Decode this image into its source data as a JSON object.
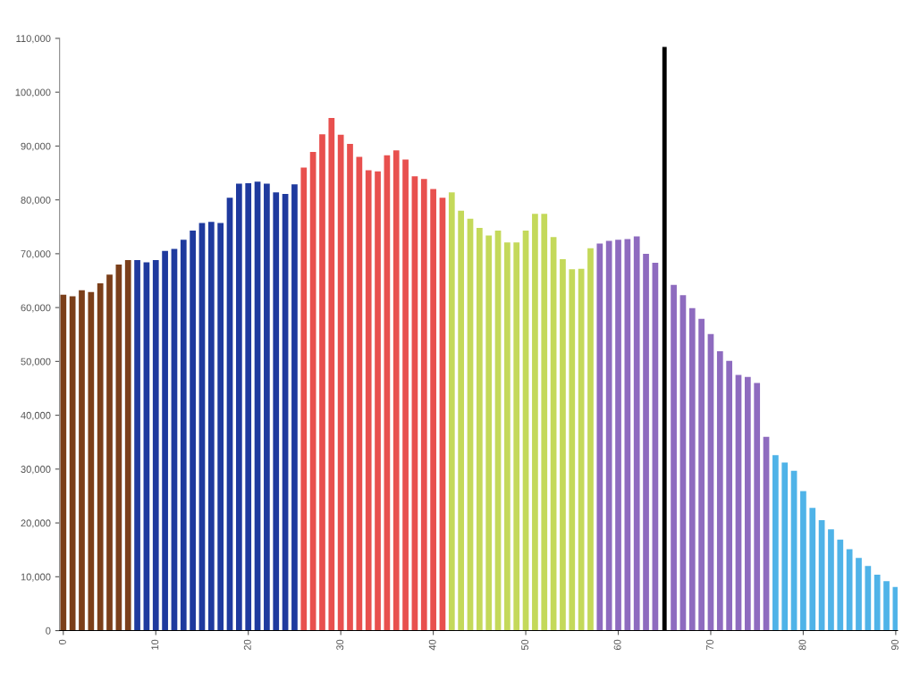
{
  "chart_data": {
    "type": "bar",
    "x": [
      0,
      1,
      2,
      3,
      4,
      5,
      6,
      7,
      8,
      9,
      10,
      11,
      12,
      13,
      14,
      15,
      16,
      17,
      18,
      19,
      20,
      21,
      22,
      23,
      24,
      25,
      26,
      27,
      28,
      29,
      30,
      31,
      32,
      33,
      34,
      35,
      36,
      37,
      38,
      39,
      40,
      41,
      42,
      43,
      44,
      45,
      46,
      47,
      48,
      49,
      50,
      51,
      52,
      53,
      54,
      55,
      56,
      57,
      58,
      59,
      60,
      61,
      62,
      63,
      64,
      65,
      66,
      67,
      68,
      69,
      70,
      71,
      72,
      73,
      74,
      75,
      76,
      77,
      78,
      79,
      80,
      81,
      82,
      83,
      84,
      85,
      86,
      87,
      88,
      89,
      90
    ],
    "values": [
      62400,
      62100,
      63200,
      62900,
      64500,
      66100,
      68000,
      68800,
      68800,
      68400,
      68800,
      70500,
      70900,
      72600,
      74300,
      75700,
      75900,
      75700,
      80400,
      83000,
      83100,
      83400,
      83000,
      81400,
      81100,
      82900,
      86000,
      88900,
      92200,
      95200,
      92100,
      90400,
      88000,
      85500,
      85300,
      88300,
      89200,
      87500,
      84400,
      83900,
      82000,
      80400,
      81400,
      78000,
      76500,
      74800,
      73400,
      74300,
      72100,
      72100,
      74300,
      77400,
      77400,
      73100,
      69000,
      67100,
      67200,
      71000,
      71900,
      72400,
      72600,
      72700,
      73200,
      70000,
      68300,
      null,
      64200,
      62300,
      59900,
      57900,
      55100,
      51900,
      50100,
      47500,
      47100,
      46000,
      36000,
      32600,
      31200,
      29700,
      25900,
      22800,
      20500,
      18800,
      16900,
      15100,
      13500,
      12000,
      10400,
      9200,
      8100
    ],
    "colors": [
      "#7b3f1a",
      "#7b3f1a",
      "#7b3f1a",
      "#7b3f1a",
      "#7b3f1a",
      "#7b3f1a",
      "#7b3f1a",
      "#7b3f1a",
      "#1f3a9e",
      "#1f3a9e",
      "#1f3a9e",
      "#1f3a9e",
      "#1f3a9e",
      "#1f3a9e",
      "#1f3a9e",
      "#1f3a9e",
      "#1f3a9e",
      "#1f3a9e",
      "#1f3a9e",
      "#1f3a9e",
      "#1f3a9e",
      "#1f3a9e",
      "#1f3a9e",
      "#1f3a9e",
      "#1f3a9e",
      "#1f3a9e",
      "#e8504e",
      "#e8504e",
      "#e8504e",
      "#e8504e",
      "#e8504e",
      "#e8504e",
      "#e8504e",
      "#e8504e",
      "#e8504e",
      "#e8504e",
      "#e8504e",
      "#e8504e",
      "#e8504e",
      "#e8504e",
      "#e8504e",
      "#e8504e",
      "#c4d95a",
      "#c4d95a",
      "#c4d95a",
      "#c4d95a",
      "#c4d95a",
      "#c4d95a",
      "#c4d95a",
      "#c4d95a",
      "#c4d95a",
      "#c4d95a",
      "#c4d95a",
      "#c4d95a",
      "#c4d95a",
      "#c4d95a",
      "#c4d95a",
      "#c4d95a",
      "#8e6bbf",
      "#8e6bbf",
      "#8e6bbf",
      "#8e6bbf",
      "#8e6bbf",
      "#8e6bbf",
      "#8e6bbf",
      "#8e6bbf",
      "#8e6bbf",
      "#8e6bbf",
      "#8e6bbf",
      "#8e6bbf",
      "#8e6bbf",
      "#8e6bbf",
      "#8e6bbf",
      "#8e6bbf",
      "#8e6bbf",
      "#8e6bbf",
      "#8e6bbf",
      "#4fb3e8",
      "#4fb3e8",
      "#4fb3e8",
      "#4fb3e8",
      "#4fb3e8",
      "#4fb3e8",
      "#4fb3e8",
      "#4fb3e8",
      "#4fb3e8",
      "#4fb3e8",
      "#4fb3e8",
      "#4fb3e8",
      "#4fb3e8",
      "#4fb3e8"
    ],
    "xlim": [
      -0.4,
      90.2
    ],
    "xticks": [
      0,
      10,
      20,
      30,
      40,
      50,
      60,
      70,
      80,
      90
    ],
    "ylim": [
      0,
      110000
    ],
    "yticks": [
      {
        "value": 0,
        "label": "0"
      },
      {
        "value": 10000,
        "label": "10,000"
      },
      {
        "value": 20000,
        "label": "20,000"
      },
      {
        "value": 30000,
        "label": "30,000"
      },
      {
        "value": 40000,
        "label": "40,000"
      },
      {
        "value": 50000,
        "label": "50,000"
      },
      {
        "value": 60000,
        "label": "60,000"
      },
      {
        "value": 70000,
        "label": "70,000"
      },
      {
        "value": 80000,
        "label": "80,000"
      },
      {
        "value": 90000,
        "label": "90,000"
      },
      {
        "value": 100000,
        "label": "100,000"
      },
      {
        "value": 110000,
        "label": "110,000"
      }
    ],
    "ref_lines": [
      {
        "axis": "x",
        "value": 65,
        "color": "#000000"
      }
    ],
    "grid": false,
    "legend": false
  }
}
